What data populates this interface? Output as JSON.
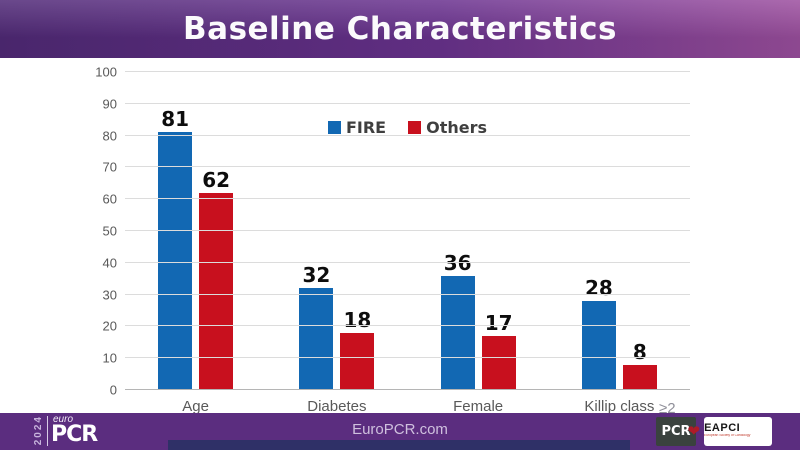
{
  "header": {
    "title": "Baseline Characteristics"
  },
  "chart_data": {
    "type": "bar",
    "title": "Baseline Characteristics",
    "categories": [
      "Age",
      "Diabetes",
      "Female",
      "Killip class"
    ],
    "series": [
      {
        "name": "FIRE",
        "color": "#1268b3",
        "values": [
          81,
          32,
          36,
          28
        ]
      },
      {
        "name": "Others",
        "color": "#c8101e",
        "values": [
          62,
          18,
          17,
          8
        ]
      }
    ],
    "xlabel": "",
    "ylabel": "",
    "ylim": [
      0,
      100
    ],
    "ytick_step": 10,
    "grid": true,
    "legend_position": "top-center",
    "annotation_killip": "≥2"
  },
  "footer": {
    "year": "2024",
    "brand_euro": "euro",
    "brand_pcr": "PCR",
    "website": "EuroPCR.com",
    "pcr_logo_label": "PCR",
    "eapci": {
      "name": "EAPCI",
      "subtitle": "European Society of Cardiology"
    }
  },
  "colors": {
    "header_left": "#512a78",
    "header_mid": "#6b3390",
    "header_right": "#9d50a0",
    "footer_purple": "#5b2d7f",
    "accent_navy": "#2f3067",
    "bar_blue": "#1268b3",
    "bar_red": "#c8101e"
  }
}
